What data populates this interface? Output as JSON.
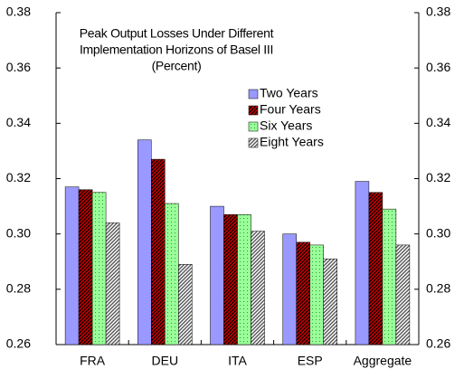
{
  "chart_data": {
    "type": "bar",
    "title": [
      "Peak Output Losses Under Different",
      "Implementation Horizons of Basel III",
      "(Percent)"
    ],
    "categories": [
      "FRA",
      "DEU",
      "ITA",
      "ESP",
      "Aggregate"
    ],
    "series": [
      {
        "name": "Two Years",
        "color": "#9999ff",
        "fill_style": "solid",
        "values": [
          0.317,
          0.334,
          0.31,
          0.3,
          0.319
        ]
      },
      {
        "name": "Four Years",
        "color": "#cc0000",
        "fill_style": "hatch",
        "values": [
          0.316,
          0.327,
          0.307,
          0.297,
          0.315
        ]
      },
      {
        "name": "Six Years",
        "color": "#99ff99",
        "fill_style": "dots",
        "values": [
          0.315,
          0.311,
          0.307,
          0.296,
          0.309
        ]
      },
      {
        "name": "Eight Years",
        "color": "#bbbbbb",
        "fill_style": "stripes",
        "values": [
          0.304,
          0.289,
          0.301,
          0.291,
          0.296
        ]
      }
    ],
    "ylim": [
      0.26,
      0.38
    ],
    "yticks": [
      0.26,
      0.28,
      {
        "value": 0.3,
        "label": "0.30"
      },
      0.32,
      0.34,
      0.36,
      0.38
    ],
    "y2lim": [
      0.26,
      0.38
    ],
    "y2ticks": [
      0.26,
      0.28,
      {
        "value": 0.3,
        "label": "0.30"
      },
      0.32,
      0.34,
      0.36,
      0.38
    ],
    "grid": false
  }
}
